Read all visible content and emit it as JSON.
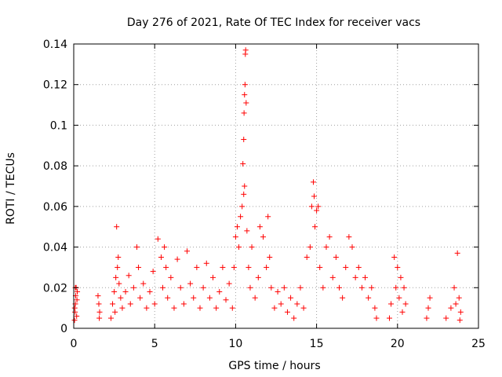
{
  "chart_data": {
    "type": "scatter",
    "title": "Day 276 of 2021, Rate Of TEC Index for receiver vacs",
    "xlabel": "GPS time / hours",
    "ylabel": "ROTI / TECUs",
    "xlim": [
      0,
      25
    ],
    "ylim": [
      0,
      0.14
    ],
    "xticks": [
      0,
      5,
      10,
      15,
      20,
      25
    ],
    "yticks": [
      0,
      0.02,
      0.04,
      0.06,
      0.08,
      0.1,
      0.12,
      0.14
    ],
    "xtick_labels": [
      "0",
      "5",
      "10",
      "15",
      "20",
      "25"
    ],
    "ytick_labels": [
      "0",
      "0.02",
      "0.04",
      "0.06",
      "0.08",
      "0.1",
      "0.12",
      "0.14"
    ],
    "grid": true,
    "marker": "plus",
    "series": [
      {
        "color": "#ff0000",
        "points": [
          [
            0.05,
            0.004
          ],
          [
            0.08,
            0.008
          ],
          [
            0.1,
            0.012
          ],
          [
            0.12,
            0.016
          ],
          [
            0.15,
            0.02
          ],
          [
            0.18,
            0.006
          ],
          [
            0.2,
            0.014
          ],
          [
            0.22,
            0.018
          ],
          [
            0.1,
            0.02
          ],
          [
            0.06,
            0.01
          ],
          [
            1.5,
            0.016
          ],
          [
            1.55,
            0.012
          ],
          [
            1.6,
            0.008
          ],
          [
            1.58,
            0.005
          ],
          [
            2.3,
            0.005
          ],
          [
            2.4,
            0.012
          ],
          [
            2.5,
            0.018
          ],
          [
            2.6,
            0.025
          ],
          [
            2.7,
            0.03
          ],
          [
            2.65,
            0.05
          ],
          [
            2.8,
            0.022
          ],
          [
            2.9,
            0.015
          ],
          [
            2.55,
            0.008
          ],
          [
            2.75,
            0.035
          ],
          [
            3.0,
            0.01
          ],
          [
            3.2,
            0.018
          ],
          [
            3.4,
            0.026
          ],
          [
            3.5,
            0.012
          ],
          [
            3.7,
            0.02
          ],
          [
            3.9,
            0.04
          ],
          [
            4.0,
            0.03
          ],
          [
            4.1,
            0.015
          ],
          [
            4.3,
            0.022
          ],
          [
            4.5,
            0.01
          ],
          [
            4.7,
            0.018
          ],
          [
            4.9,
            0.028
          ],
          [
            5.0,
            0.012
          ],
          [
            5.2,
            0.044
          ],
          [
            5.4,
            0.035
          ],
          [
            5.5,
            0.02
          ],
          [
            5.6,
            0.04
          ],
          [
            5.7,
            0.03
          ],
          [
            5.8,
            0.015
          ],
          [
            6.0,
            0.025
          ],
          [
            6.2,
            0.01
          ],
          [
            6.4,
            0.034
          ],
          [
            6.6,
            0.02
          ],
          [
            6.8,
            0.012
          ],
          [
            7.0,
            0.038
          ],
          [
            7.2,
            0.022
          ],
          [
            7.4,
            0.015
          ],
          [
            7.6,
            0.03
          ],
          [
            7.8,
            0.01
          ],
          [
            8.0,
            0.02
          ],
          [
            8.2,
            0.032
          ],
          [
            8.4,
            0.015
          ],
          [
            8.6,
            0.025
          ],
          [
            8.8,
            0.01
          ],
          [
            9.0,
            0.018
          ],
          [
            9.2,
            0.03
          ],
          [
            9.4,
            0.014
          ],
          [
            9.6,
            0.022
          ],
          [
            9.8,
            0.01
          ],
          [
            9.9,
            0.03
          ],
          [
            10.0,
            0.045
          ],
          [
            10.1,
            0.05
          ],
          [
            10.2,
            0.04
          ],
          [
            10.3,
            0.055
          ],
          [
            10.4,
            0.06
          ],
          [
            10.45,
            0.081
          ],
          [
            10.5,
            0.093
          ],
          [
            10.52,
            0.106
          ],
          [
            10.55,
            0.115
          ],
          [
            10.58,
            0.12
          ],
          [
            10.6,
            0.135
          ],
          [
            10.62,
            0.137
          ],
          [
            10.5,
            0.066
          ],
          [
            10.55,
            0.07
          ],
          [
            10.65,
            0.111
          ],
          [
            10.7,
            0.048
          ],
          [
            10.8,
            0.03
          ],
          [
            10.9,
            0.02
          ],
          [
            11.0,
            0.04
          ],
          [
            11.2,
            0.015
          ],
          [
            11.4,
            0.025
          ],
          [
            11.5,
            0.05
          ],
          [
            11.7,
            0.045
          ],
          [
            11.9,
            0.03
          ],
          [
            12.0,
            0.055
          ],
          [
            12.1,
            0.035
          ],
          [
            12.2,
            0.02
          ],
          [
            12.4,
            0.01
          ],
          [
            12.6,
            0.018
          ],
          [
            12.8,
            0.012
          ],
          [
            13.0,
            0.02
          ],
          [
            13.2,
            0.008
          ],
          [
            13.4,
            0.015
          ],
          [
            13.6,
            0.005
          ],
          [
            13.8,
            0.012
          ],
          [
            14.0,
            0.02
          ],
          [
            14.2,
            0.01
          ],
          [
            14.4,
            0.035
          ],
          [
            14.6,
            0.04
          ],
          [
            14.7,
            0.06
          ],
          [
            14.8,
            0.072
          ],
          [
            14.85,
            0.065
          ],
          [
            14.9,
            0.05
          ],
          [
            15.0,
            0.058
          ],
          [
            15.1,
            0.06
          ],
          [
            15.2,
            0.03
          ],
          [
            15.4,
            0.02
          ],
          [
            15.6,
            0.04
          ],
          [
            15.8,
            0.045
          ],
          [
            16.0,
            0.025
          ],
          [
            16.2,
            0.035
          ],
          [
            16.4,
            0.02
          ],
          [
            16.6,
            0.015
          ],
          [
            16.8,
            0.03
          ],
          [
            17.0,
            0.045
          ],
          [
            17.2,
            0.04
          ],
          [
            17.4,
            0.025
          ],
          [
            17.6,
            0.03
          ],
          [
            17.8,
            0.02
          ],
          [
            18.0,
            0.025
          ],
          [
            18.2,
            0.015
          ],
          [
            18.4,
            0.02
          ],
          [
            18.6,
            0.01
          ],
          [
            18.7,
            0.005
          ],
          [
            19.5,
            0.005
          ],
          [
            19.6,
            0.012
          ],
          [
            19.8,
            0.035
          ],
          [
            19.9,
            0.02
          ],
          [
            20.0,
            0.03
          ],
          [
            20.1,
            0.015
          ],
          [
            20.2,
            0.025
          ],
          [
            20.3,
            0.008
          ],
          [
            20.5,
            0.012
          ],
          [
            20.4,
            0.02
          ],
          [
            21.8,
            0.005
          ],
          [
            21.9,
            0.01
          ],
          [
            22.0,
            0.015
          ],
          [
            23.0,
            0.005
          ],
          [
            23.3,
            0.01
          ],
          [
            23.5,
            0.02
          ],
          [
            23.6,
            0.012
          ],
          [
            23.7,
            0.037
          ],
          [
            23.8,
            0.015
          ],
          [
            23.9,
            0.008
          ],
          [
            23.85,
            0.004
          ]
        ]
      }
    ]
  }
}
